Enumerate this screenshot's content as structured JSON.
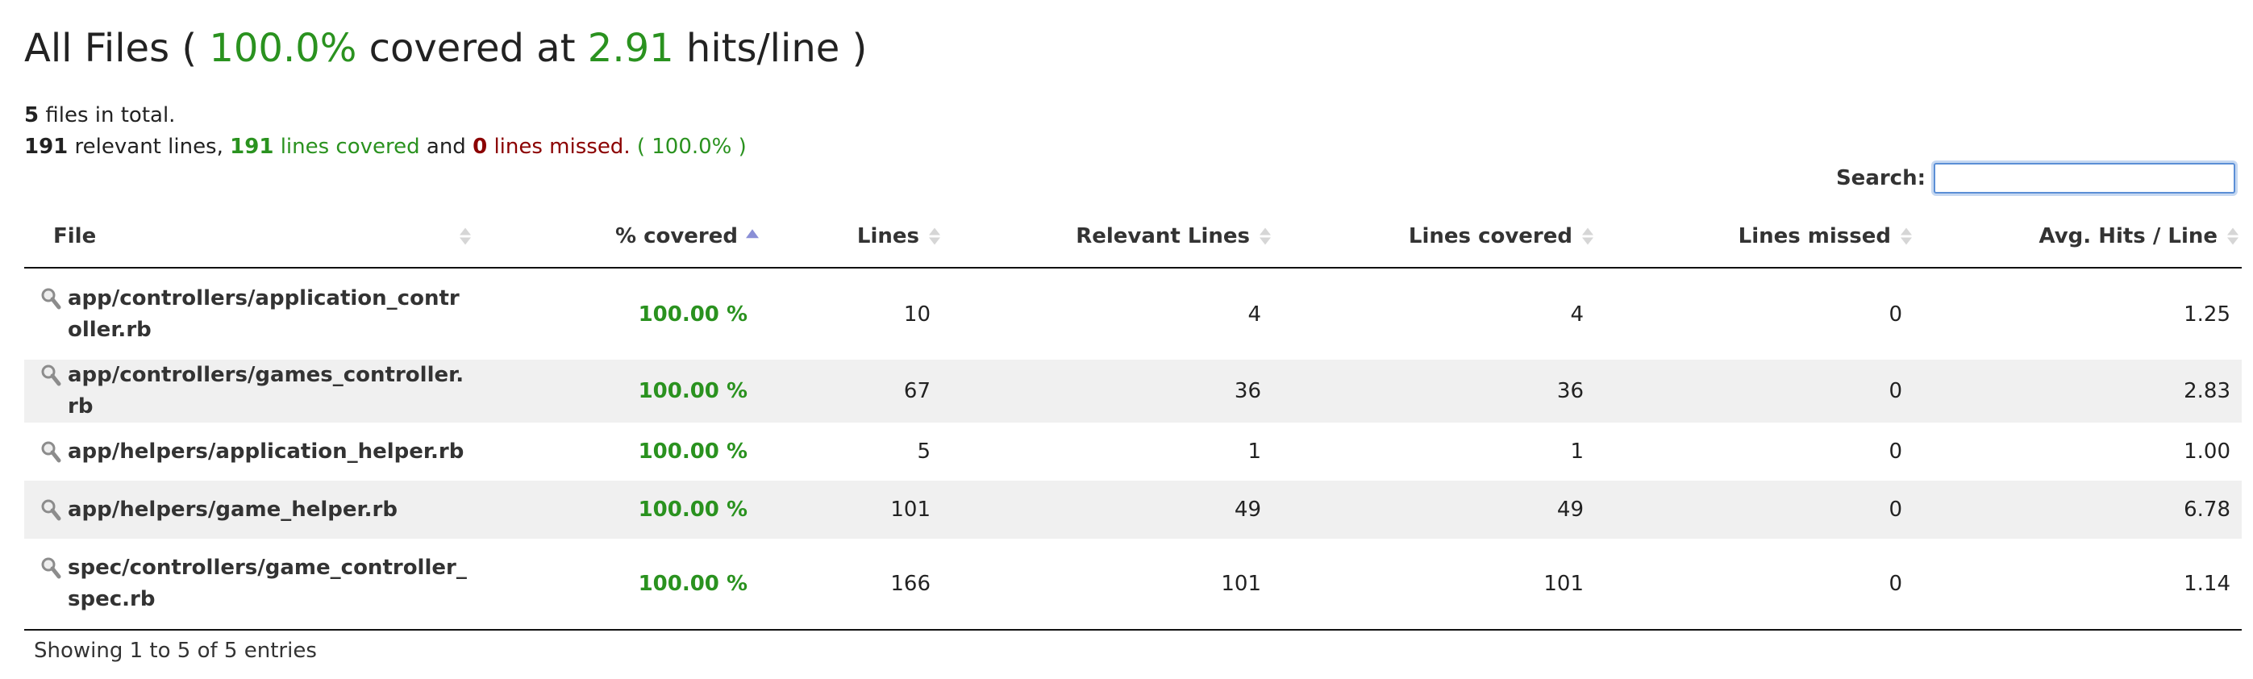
{
  "header": {
    "title_prefix": "All Files (",
    "coverage_percent": "100.0%",
    "title_middle": "covered at",
    "hits_per_line": "2.91",
    "title_suffix": "hits/line )"
  },
  "summary": {
    "files_total": "5",
    "files_text": "files in total.",
    "relevant_lines": "191",
    "relevant_text": "relevant lines,",
    "covered_lines": "191",
    "covered_text": "lines covered",
    "and_text": "and",
    "missed_lines": "0",
    "missed_text": "lines missed.",
    "percent_text": "( 100.0% )"
  },
  "search": {
    "label": "Search:",
    "value": ""
  },
  "table": {
    "columns": [
      "File",
      "% covered",
      "Lines",
      "Relevant Lines",
      "Lines covered",
      "Lines missed",
      "Avg. Hits / Line"
    ],
    "sorted_column": "% covered",
    "rows": [
      {
        "file": "app/controllers/application_controller.rb",
        "covered": "100.00 %",
        "lines": "10",
        "relevant": "4",
        "lines_covered": "4",
        "missed": "0",
        "avg_hits": "1.25"
      },
      {
        "file": "app/controllers/games_controller.rb",
        "covered": "100.00 %",
        "lines": "67",
        "relevant": "36",
        "lines_covered": "36",
        "missed": "0",
        "avg_hits": "2.83"
      },
      {
        "file": "app/helpers/application_helper.rb",
        "covered": "100.00 %",
        "lines": "5",
        "relevant": "1",
        "lines_covered": "1",
        "missed": "0",
        "avg_hits": "1.00"
      },
      {
        "file": "app/helpers/game_helper.rb",
        "covered": "100.00 %",
        "lines": "101",
        "relevant": "49",
        "lines_covered": "49",
        "missed": "0",
        "avg_hits": "6.78"
      },
      {
        "file": "spec/controllers/game_controller_spec.rb",
        "covered": "100.00 %",
        "lines": "166",
        "relevant": "101",
        "lines_covered": "101",
        "missed": "0",
        "avg_hits": "1.14"
      }
    ]
  },
  "footer": {
    "info": "Showing 1 to 5 of 5 entries"
  },
  "colors": {
    "covered_green": "#2a921f",
    "missed_red": "#8b0000",
    "sort_active": "#8a8fd6",
    "row_stripe": "#f0f0f0"
  },
  "icons": {
    "row_file_icon": "magnifier-icon",
    "sort_icon": "sort-arrows-icon"
  }
}
